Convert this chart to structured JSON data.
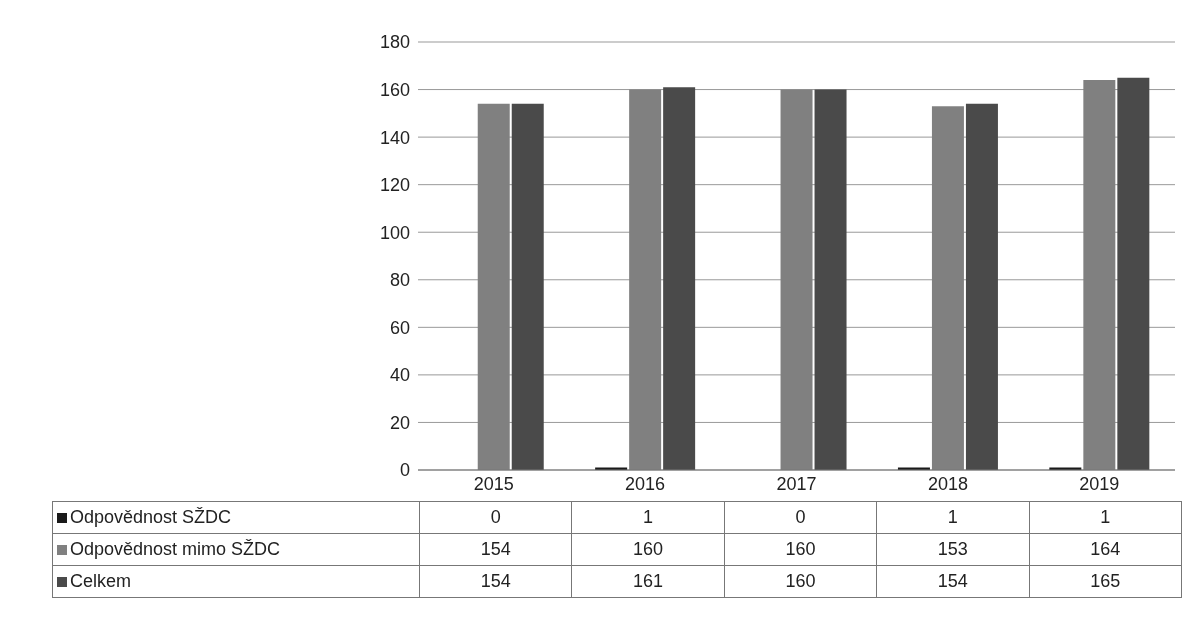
{
  "chart_data": {
    "type": "bar",
    "categories": [
      "2015",
      "2016",
      "2017",
      "2018",
      "2019"
    ],
    "series": [
      {
        "name": "Odpovědnost SŽDC",
        "color": "#1a1a1a",
        "values": [
          0,
          1,
          0,
          1,
          1
        ]
      },
      {
        "name": "Odpovědnost mimo SŽDC",
        "color": "#808080",
        "values": [
          154,
          160,
          160,
          153,
          164
        ]
      },
      {
        "name": "Celkem",
        "color": "#4a4a4a",
        "values": [
          154,
          161,
          160,
          154,
          165
        ]
      }
    ],
    "ylim": [
      0,
      180
    ],
    "yticks": [
      0,
      20,
      40,
      60,
      80,
      100,
      120,
      140,
      160,
      180
    ],
    "grid": "y",
    "legend": "bottom",
    "data_labels": true
  }
}
